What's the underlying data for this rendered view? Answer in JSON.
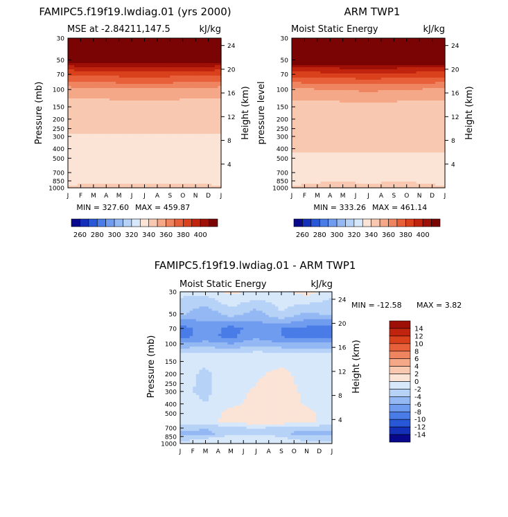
{
  "chart_data": [
    {
      "id": "model",
      "type": "heatmap",
      "title": "FAMIPC5.f19f19.lwdiag.01 (yrs 2000)",
      "subtitle_left": "MSE at -2.84211,147.5",
      "subtitle_right": "kJ/kg",
      "ylabel": "Pressure (mb)",
      "ylabel_right": "Height (km)",
      "x_ticks": [
        "J",
        "F",
        "M",
        "A",
        "M",
        "J",
        "J",
        "A",
        "S",
        "O",
        "N",
        "D",
        "J"
      ],
      "y_ticks": [
        30,
        50,
        70,
        100,
        150,
        200,
        250,
        300,
        400,
        500,
        700,
        850,
        1000
      ],
      "height_ticks": [
        24,
        20,
        16,
        12,
        8,
        4
      ],
      "min_label": "MIN = 327.60",
      "max_label": "MAX = 459.87",
      "min": 327.6,
      "max": 459.87,
      "levels": [
        250,
        260,
        270,
        280,
        290,
        300,
        310,
        320,
        330,
        340,
        350,
        360,
        370,
        380,
        390,
        400,
        410
      ],
      "colorbar_ticks": [
        260,
        280,
        300,
        320,
        340,
        360,
        380,
        400
      ],
      "colorbar_colors": [
        "#08088c",
        "#1430b8",
        "#2858d8",
        "#4a7ce8",
        "#6f9cef",
        "#93b8f3",
        "#b7d2f7",
        "#d8e8fb",
        "#fbe3d6",
        "#f8c8b0",
        "#f5a888",
        "#ef8560",
        "#e8603a",
        "#d9401c",
        "#c0240e",
        "#9e1006",
        "#7a0404"
      ],
      "profile_months": [
        0,
        3,
        6,
        9,
        12
      ],
      "profile": {
        "30": [
          459,
          459,
          459,
          459,
          459
        ],
        "50": [
          420,
          420,
          420,
          420,
          420
        ],
        "60": [
          395,
          396,
          397,
          396,
          395
        ],
        "70": [
          382,
          383,
          385,
          383,
          382
        ],
        "85": [
          368,
          370,
          372,
          370,
          368
        ],
        "100": [
          355,
          357,
          359,
          357,
          355
        ],
        "130": [
          348,
          349,
          350,
          349,
          348
        ],
        "200": [
          344,
          343,
          343,
          343,
          344
        ],
        "280": [
          341,
          340,
          340,
          340,
          341
        ],
        "300": [
          338,
          339,
          339,
          339,
          338
        ],
        "400": [
          335,
          336,
          336,
          336,
          335
        ],
        "500": [
          334,
          335,
          335,
          335,
          334
        ],
        "700": [
          332,
          333,
          333,
          333,
          332
        ],
        "850": [
          337,
          338,
          338,
          338,
          337
        ],
        "1000": [
          342,
          343,
          343,
          343,
          342
        ]
      }
    },
    {
      "id": "obs",
      "type": "heatmap",
      "title": "ARM TWP1",
      "subtitle_left": "Moist Static Energy",
      "subtitle_right": "kJ/kg",
      "ylabel": "pressure level",
      "ylabel_right": "Height (km)",
      "x_ticks": [
        "J",
        "F",
        "M",
        "A",
        "M",
        "J",
        "J",
        "A",
        "S",
        "O",
        "N",
        "D",
        "J"
      ],
      "y_ticks": [
        30,
        50,
        70,
        100,
        150,
        200,
        250,
        300,
        400,
        500,
        700,
        850,
        1000
      ],
      "height_ticks": [
        24,
        20,
        16,
        12,
        8,
        4
      ],
      "min_label": "MIN = 333.26",
      "max_label": "MAX = 461.14",
      "min": 333.26,
      "max": 461.14,
      "levels": [
        250,
        260,
        270,
        280,
        290,
        300,
        310,
        320,
        330,
        340,
        350,
        360,
        370,
        380,
        390,
        400,
        410
      ],
      "colorbar_ticks": [
        260,
        280,
        300,
        320,
        340,
        360,
        380,
        400
      ],
      "colorbar_colors": [
        "#08088c",
        "#1430b8",
        "#2858d8",
        "#4a7ce8",
        "#6f9cef",
        "#93b8f3",
        "#b7d2f7",
        "#d8e8fb",
        "#fbe3d6",
        "#f8c8b0",
        "#f5a888",
        "#ef8560",
        "#e8603a",
        "#d9401c",
        "#c0240e",
        "#9e1006",
        "#7a0404"
      ],
      "profile_months": [
        0,
        3,
        6,
        9,
        12
      ],
      "profile": {
        "30": [
          461,
          461,
          461,
          461,
          461
        ],
        "50": [
          425,
          425,
          425,
          425,
          425
        ],
        "60": [
          400,
          401,
          402,
          401,
          400
        ],
        "70": [
          385,
          386,
          388,
          386,
          385
        ],
        "85": [
          370,
          372,
          374,
          372,
          370
        ],
        "100": [
          358,
          360,
          362,
          360,
          358
        ],
        "130": [
          349,
          350,
          351,
          350,
          349
        ],
        "200": [
          344,
          344,
          344,
          344,
          344
        ],
        "300": [
          343,
          343,
          343,
          343,
          343
        ],
        "400": [
          341,
          342,
          342,
          342,
          341
        ],
        "500": [
          338,
          338,
          338,
          338,
          338
        ],
        "700": [
          337,
          337,
          337,
          337,
          337
        ],
        "850": [
          338,
          340,
          339,
          340,
          338
        ],
        "1000": [
          341,
          342,
          342,
          342,
          341
        ]
      }
    },
    {
      "id": "diff",
      "type": "heatmap",
      "title": "FAMIPC5.f19f19.lwdiag.01 - ARM TWP1",
      "subtitle_left": "Moist Static Energy",
      "subtitle_right": "kJ/kg",
      "ylabel": "Pressure (mb)",
      "ylabel_right": "Height (km)",
      "x_ticks": [
        "J",
        "F",
        "M",
        "A",
        "M",
        "J",
        "J",
        "A",
        "S",
        "O",
        "N",
        "D",
        "J"
      ],
      "y_ticks": [
        30,
        50,
        70,
        100,
        150,
        200,
        250,
        300,
        400,
        500,
        700,
        850,
        1000
      ],
      "height_ticks": [
        24,
        20,
        16,
        12,
        8,
        4
      ],
      "min_label": "MIN = -12.58",
      "max_label": "MAX =    3.82",
      "min": -12.58,
      "max": 3.82,
      "levels": [
        -16,
        -14,
        -12,
        -10,
        -8,
        -6,
        -4,
        -2,
        0,
        2,
        4,
        6,
        8,
        10,
        12,
        14,
        16
      ],
      "colorbar_labels": [
        14,
        12,
        10,
        8,
        6,
        4,
        2,
        0,
        -2,
        -4,
        -6,
        -8,
        -10,
        -12,
        -14
      ],
      "colorbar_colors": [
        "#08088c",
        "#1430b8",
        "#2858d8",
        "#4a7ce8",
        "#6f9cef",
        "#93b8f3",
        "#b7d2f7",
        "#d8e8fb",
        "#fbe3d6",
        "#f8c8b0",
        "#f5a888",
        "#ef8560",
        "#e8603a",
        "#d9401c",
        "#c0240e",
        "#9e1006"
      ],
      "profile_months": [
        0,
        2,
        4,
        6,
        8,
        10,
        12
      ],
      "profile": {
        "30": [
          -1.5,
          -1.2,
          0.5,
          -0.5,
          -0.8,
          1.0,
          -1.5
        ],
        "50": [
          -3.5,
          -5.5,
          -3.0,
          -5.0,
          -2.0,
          -4.5,
          -3.5
        ],
        "70": [
          -9.5,
          -6.5,
          -9.0,
          -7.0,
          -8.0,
          -8.5,
          -9.5
        ],
        "85": [
          -8.5,
          -7.5,
          -8.5,
          -6.5,
          -8.0,
          -9.0,
          -8.5
        ],
        "100": [
          -5.5,
          -5.0,
          -6.0,
          -4.5,
          -5.5,
          -5.5,
          -5.5
        ],
        "130": [
          -1.5,
          -1.0,
          -1.2,
          -0.8,
          -1.0,
          -1.3,
          -1.5
        ],
        "200": [
          -1.0,
          -2.5,
          -0.5,
          -0.3,
          0.5,
          -0.8,
          -1.0
        ],
        "300": [
          -1.5,
          -2.5,
          -0.5,
          0.2,
          1.0,
          -0.5,
          -1.5
        ],
        "400": [
          -1.0,
          -2.0,
          -0.5,
          0.5,
          1.2,
          -0.3,
          -1.0
        ],
        "500": [
          -0.8,
          -1.5,
          0.8,
          1.8,
          2.0,
          0.5,
          -0.8
        ],
        "600": [
          -1.0,
          -0.8,
          1.0,
          1.0,
          1.2,
          0.5,
          -1.0
        ],
        "700": [
          -3.0,
          -4.0,
          -2.5,
          -2.0,
          -2.5,
          -3.0,
          -3.0
        ],
        "800": [
          -5.0,
          -4.5,
          -3.5,
          -2.5,
          -3.0,
          -6.0,
          -5.0
        ],
        "850": [
          -3.0,
          -2.5,
          -1.5,
          -1.5,
          -2.0,
          -3.0,
          -3.0
        ],
        "1000": [
          -1.5,
          -1.0,
          -0.5,
          -0.5,
          -1.0,
          -1.5,
          -1.5
        ]
      }
    }
  ]
}
